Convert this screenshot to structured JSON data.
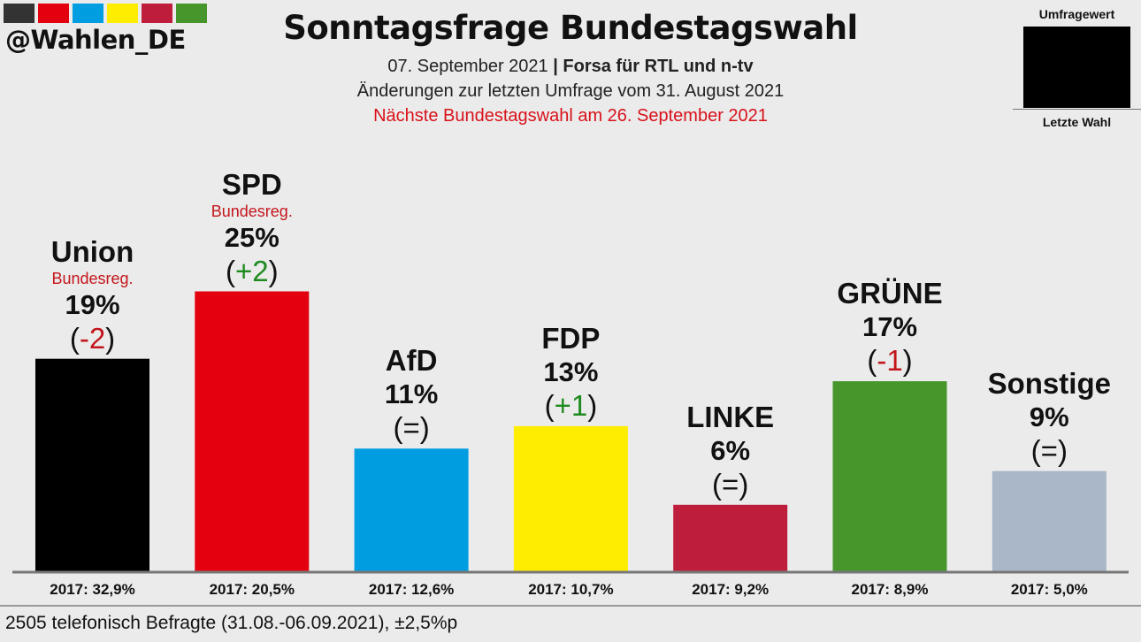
{
  "header": {
    "handle": "@Wahlen_DE",
    "strip_colors": [
      "#333333",
      "#e3000f",
      "#009ee0",
      "#ffed00",
      "#be1e3c",
      "#46962b"
    ],
    "title": "Sonntagsfrage Bundestagswahl",
    "date": "07. September 2021",
    "separator": "|",
    "source": "Forsa für RTL und n-tv",
    "changes_note": "Änderungen zur letzten Umfrage vom 31. August 2021",
    "next_election": "Nächste Bundestagswahl am 26. September 2021"
  },
  "legend": {
    "top_label": "Umfragewert",
    "bottom_label": "Letzte Wahl"
  },
  "footer": {
    "text": "2505 telefonisch Befragte (31.08.-06.09.2021), ±2,5%p"
  },
  "chart_data": {
    "type": "bar",
    "title": "Sonntagsfrage Bundestagswahl",
    "xlabel": "",
    "ylabel": "",
    "ylim": [
      0,
      25
    ],
    "grid": false,
    "legend": "top-right",
    "categories": [
      "Union",
      "SPD",
      "AfD",
      "FDP",
      "LINKE",
      "GRÜNE",
      "Sonstige"
    ],
    "values": [
      19,
      25,
      11,
      13,
      6,
      17,
      9
    ],
    "bars": [
      {
        "party": "Union",
        "value": 19,
        "value_label": "19%",
        "change": "-2",
        "change_sign": "neg",
        "gov_label": "Bundesreg.",
        "prev_label": "2017: 32,9%",
        "prev_value": 32.9,
        "color": "#000000"
      },
      {
        "party": "SPD",
        "value": 25,
        "value_label": "25%",
        "change": "+2",
        "change_sign": "pos",
        "gov_label": "Bundesreg.",
        "prev_label": "2017: 20,5%",
        "prev_value": 20.5,
        "color": "#e3000f"
      },
      {
        "party": "AfD",
        "value": 11,
        "value_label": "11%",
        "change": "=",
        "change_sign": "eq",
        "gov_label": "",
        "prev_label": "2017: 12,6%",
        "prev_value": 12.6,
        "color": "#009ee0"
      },
      {
        "party": "FDP",
        "value": 13,
        "value_label": "13%",
        "change": "+1",
        "change_sign": "pos",
        "gov_label": "",
        "prev_label": "2017: 10,7%",
        "prev_value": 10.7,
        "color": "#ffed00"
      },
      {
        "party": "LINKE",
        "value": 6,
        "value_label": "6%",
        "change": "=",
        "change_sign": "eq",
        "gov_label": "",
        "prev_label": "2017: 9,2%",
        "prev_value": 9.2,
        "color": "#be1e3c"
      },
      {
        "party": "GRÜNE",
        "value": 17,
        "value_label": "17%",
        "change": "-1",
        "change_sign": "neg",
        "gov_label": "",
        "prev_label": "2017: 8,9%",
        "prev_value": 8.9,
        "color": "#46962b"
      },
      {
        "party": "Sonstige",
        "value": 9,
        "value_label": "9%",
        "change": "=",
        "change_sign": "eq",
        "gov_label": "",
        "prev_label": "2017: 5,0%",
        "prev_value": 5.0,
        "color": "#aab7c8"
      }
    ]
  }
}
